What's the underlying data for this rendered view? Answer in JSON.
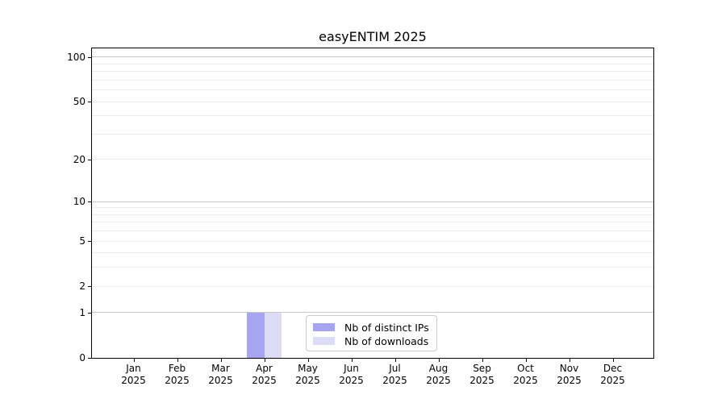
{
  "chart_data": {
    "type": "bar",
    "title": "easyENTIM 2025",
    "categories": [
      "Jan",
      "Feb",
      "Mar",
      "Apr",
      "May",
      "Jun",
      "Jul",
      "Aug",
      "Sep",
      "Oct",
      "Nov",
      "Dec"
    ],
    "category_year": "2025",
    "series": [
      {
        "name": "Nb of distinct IPs",
        "color": "#a5a5f0",
        "values": [
          0,
          0,
          0,
          1,
          0,
          0,
          0,
          0,
          0,
          0,
          0,
          0
        ]
      },
      {
        "name": "Nb of downloads",
        "color": "#dcdcf7",
        "values": [
          0,
          0,
          0,
          1,
          0,
          0,
          0,
          0,
          0,
          0,
          0,
          0
        ]
      }
    ],
    "xlabel": "",
    "ylabel": "",
    "yscale": "log1p",
    "ylim": [
      0,
      115
    ],
    "y_ticks": [
      0,
      1,
      2,
      5,
      10,
      20,
      50,
      100
    ],
    "grid_major": [
      1,
      10,
      100
    ],
    "grid_minor": [
      2,
      3,
      4,
      5,
      6,
      7,
      8,
      9,
      20,
      30,
      40,
      50,
      60,
      70,
      80,
      90
    ],
    "grid": "on",
    "legend_position": "lower center",
    "colors": {
      "grid_major": "#c9c9c9",
      "grid_minor": "#ececec",
      "axis": "#000000",
      "text": "#000000",
      "background": "#ffffff"
    }
  }
}
